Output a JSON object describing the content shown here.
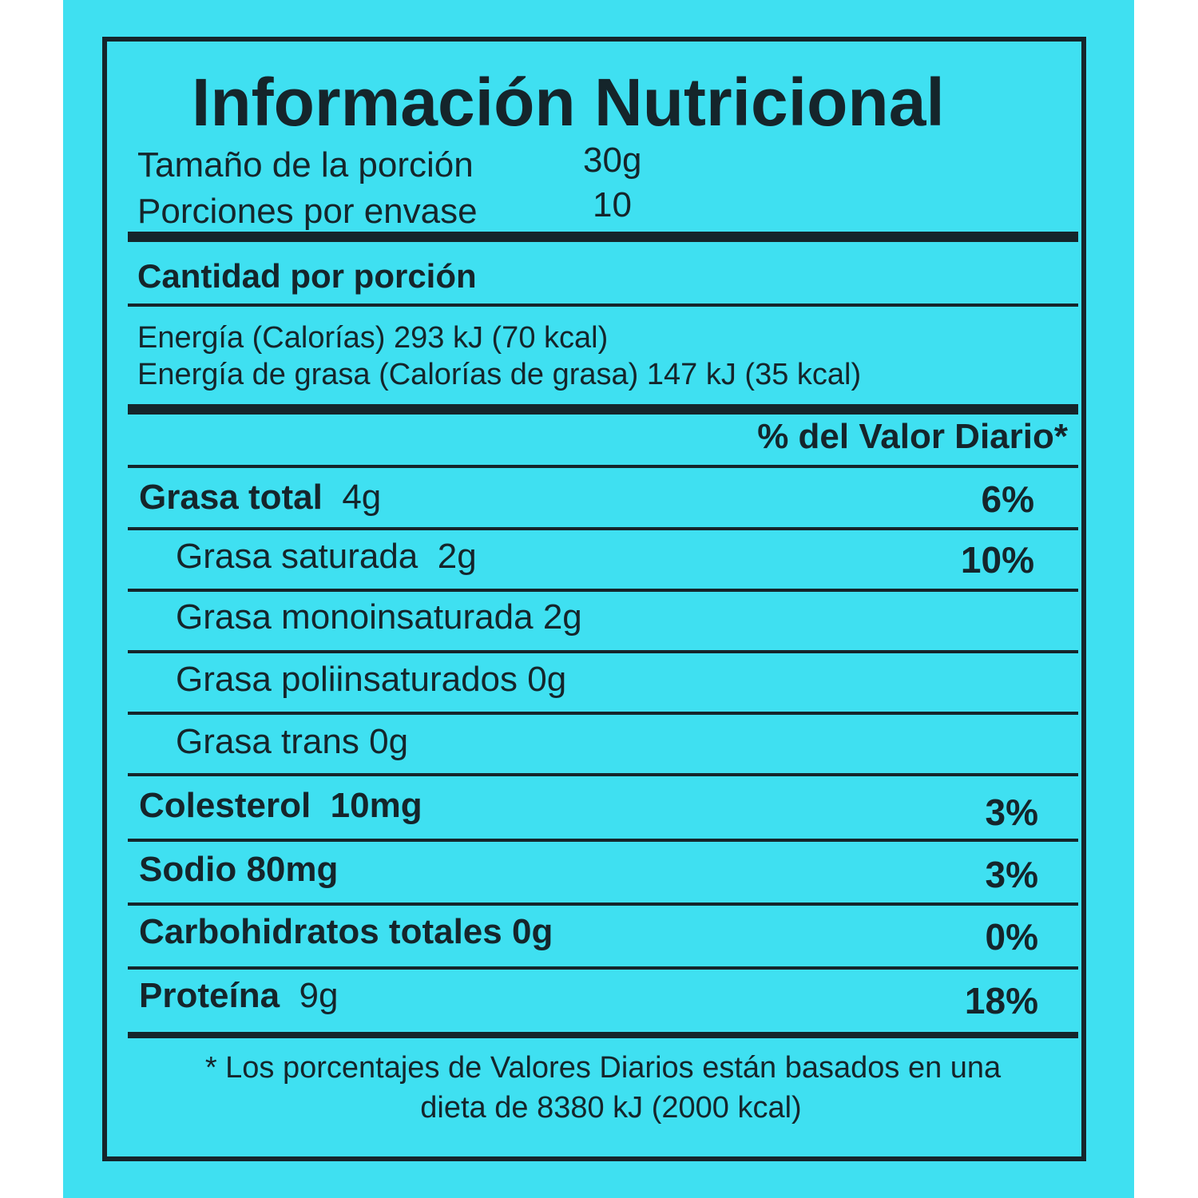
{
  "label": {
    "title": "Información Nutricional",
    "serving_size_label": "Tamaño de la porción",
    "serving_size_value": "30g",
    "servings_label": "Porciones por envase",
    "servings_value": "10",
    "amount_per_serving": "Cantidad por porción",
    "energy": "Energía (Calorías) 293 kJ   (70 kcal)",
    "energy_fat": "Energía de grasa (Calorías de grasa) 147 kJ (35 kcal)",
    "daily_value_header": "% del Valor Diario*",
    "rows": [
      {
        "name": "Grasa total",
        "amount": "4g",
        "pct": "6%"
      },
      {
        "name": "Grasa saturada",
        "amount": "2g",
        "pct": "10%"
      },
      {
        "name": "Grasa monoinsaturada",
        "amount": "2g"
      },
      {
        "name": "Grasa poliinsaturados",
        "amount": "0g"
      },
      {
        "name": "Grasa trans",
        "amount": "0g"
      },
      {
        "name": "Colesterol",
        "amount": "10mg",
        "pct": "3%"
      },
      {
        "name": "Sodio",
        "amount": "80mg",
        "pct": "3%"
      },
      {
        "name": "Carbohidratos totales",
        "amount": "0g",
        "pct": "0%"
      },
      {
        "name": "Proteína",
        "amount": "9g",
        "pct": "18%"
      }
    ],
    "footnote_line1": "*  Los porcentajes de Valores Diarios están basados en una",
    "footnote_line2": "dieta de 8380 kJ (2000 kcal)"
  },
  "colors": {
    "background": "#3fe0f1",
    "ink": "#15252b"
  }
}
